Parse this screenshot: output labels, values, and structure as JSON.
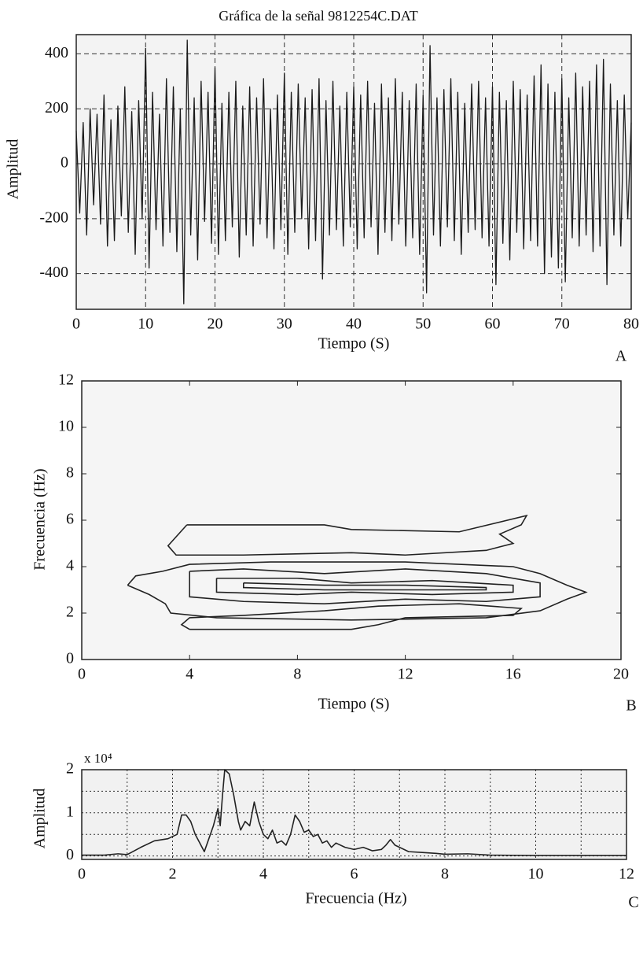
{
  "chart_data": [
    {
      "type": "line",
      "title": "Gráfica de la señal 9812254C.DAT",
      "x_label": "Tiempo (S)",
      "y_label": "Amplitud",
      "panel_label": "A",
      "color": "#1a1a1a",
      "grid": true,
      "xlim": [
        0,
        80
      ],
      "ylim": [
        -530,
        470
      ],
      "xticks": [
        0,
        10,
        20,
        30,
        40,
        50,
        60,
        70,
        80
      ],
      "yticks": [
        -400,
        -200,
        0,
        200,
        400
      ],
      "x": [
        0,
        0.5,
        1,
        1.5,
        2,
        2.5,
        3,
        3.5,
        4,
        4.5,
        5,
        5.5,
        6,
        6.5,
        7,
        7.5,
        8,
        8.5,
        9,
        9.5,
        10,
        10.5,
        11,
        11.5,
        12,
        12.5,
        13,
        13.5,
        14,
        14.5,
        15,
        15.5,
        16,
        16.5,
        17,
        17.5,
        18,
        18.5,
        19,
        19.5,
        20,
        20.5,
        21,
        21.5,
        22,
        22.5,
        23,
        23.5,
        24,
        24.5,
        25,
        25.5,
        26,
        26.5,
        27,
        27.5,
        28,
        28.5,
        29,
        29.5,
        30,
        30.5,
        31,
        31.5,
        32,
        32.5,
        33,
        33.5,
        34,
        34.5,
        35,
        35.5,
        36,
        36.5,
        37,
        37.5,
        38,
        38.5,
        39,
        39.5,
        40,
        40.5,
        41,
        41.5,
        42,
        42.5,
        43,
        43.5,
        44,
        44.5,
        45,
        45.5,
        46,
        46.5,
        47,
        47.5,
        48,
        48.5,
        49,
        49.5,
        50,
        50.5,
        51,
        51.5,
        52,
        52.5,
        53,
        53.5,
        54,
        54.5,
        55,
        55.5,
        56,
        56.5,
        57,
        57.5,
        58,
        58.5,
        59,
        59.5,
        60,
        60.5,
        61,
        61.5,
        62,
        62.5,
        63,
        63.5,
        64,
        64.5,
        65,
        65.5,
        66,
        66.5,
        67,
        67.5,
        68,
        68.5,
        69,
        69.5,
        70,
        70.5,
        71,
        71.5,
        72,
        72.5,
        73,
        73.5,
        74,
        74.5,
        75,
        75.5,
        76,
        76.5,
        77,
        77.5,
        78,
        78.5,
        79,
        79.5,
        80
      ],
      "values": [
        120,
        -180,
        150,
        -260,
        200,
        -150,
        180,
        -220,
        250,
        -300,
        160,
        -280,
        210,
        -190,
        280,
        -250,
        190,
        -330,
        230,
        -200,
        420,
        -380,
        260,
        -240,
        180,
        -300,
        310,
        -250,
        280,
        -320,
        200,
        -510,
        450,
        -260,
        240,
        -350,
        300,
        -210,
        260,
        -290,
        350,
        -330,
        220,
        -280,
        260,
        -230,
        300,
        -340,
        210,
        -260,
        280,
        -300,
        240,
        -220,
        310,
        -270,
        200,
        -310,
        250,
        -240,
        330,
        -330,
        260,
        -250,
        290,
        -200,
        240,
        -310,
        270,
        -280,
        310,
        -420,
        230,
        -260,
        300,
        -240,
        210,
        -300,
        260,
        -230,
        280,
        -310,
        250,
        -270,
        300,
        -230,
        220,
        -330,
        290,
        -250,
        240,
        -280,
        310,
        -220,
        260,
        -300,
        230,
        -270,
        290,
        -330,
        250,
        -470,
        430,
        -260,
        240,
        -300,
        270,
        -230,
        310,
        -280,
        260,
        -330,
        220,
        -250,
        290,
        -240,
        300,
        -270,
        240,
        -300,
        280,
        -440,
        260,
        -290,
        230,
        -350,
        300,
        -250,
        270,
        -310,
        250,
        -280,
        320,
        -300,
        360,
        -400,
        290,
        -340,
        260,
        -380,
        310,
        -430,
        240,
        -270,
        330,
        -300,
        280,
        -260,
        300,
        -320,
        360,
        -300,
        380,
        -440,
        290,
        -260,
        230,
        -300,
        250,
        -200,
        150
      ]
    },
    {
      "type": "contour",
      "x_label": "Tiempo (S)",
      "y_label": "Frecuencia (Hz)",
      "panel_label": "B",
      "color": "#222222",
      "xlim": [
        0,
        20
      ],
      "ylim": [
        0,
        12
      ],
      "xticks": [
        0,
        4,
        8,
        12,
        16,
        20
      ],
      "yticks": [
        0,
        2,
        4,
        6,
        8,
        10,
        12
      ],
      "contours": [
        {
          "x": [
            1.7,
            2,
            3,
            4,
            7,
            12,
            16,
            17,
            18,
            18.7,
            18,
            17,
            15,
            10,
            5,
            3.3,
            3.1,
            2.5,
            1.7
          ],
          "y": [
            3.2,
            3.6,
            3.8,
            4.1,
            4.2,
            4.2,
            4.0,
            3.7,
            3.2,
            2.9,
            2.6,
            2.1,
            1.8,
            1.7,
            1.8,
            2.0,
            2.4,
            2.8,
            3.2
          ]
        },
        {
          "x": [
            3.9,
            9,
            10,
            14,
            16.5,
            16.3,
            15.5,
            16,
            15,
            12,
            10,
            6,
            3.5,
            3.2,
            3.9
          ],
          "y": [
            5.8,
            5.8,
            5.6,
            5.5,
            6.2,
            5.8,
            5.4,
            5.0,
            4.7,
            4.5,
            4.6,
            4.5,
            4.5,
            4.9,
            5.8
          ]
        },
        {
          "x": [
            4,
            10,
            11,
            12,
            16,
            16.3,
            14,
            11,
            9,
            6,
            4,
            3.7,
            4
          ],
          "y": [
            1.3,
            1.3,
            1.5,
            1.8,
            1.9,
            2.2,
            2.4,
            2.3,
            2.1,
            1.9,
            1.8,
            1.5,
            1.3
          ]
        },
        {
          "x": [
            4,
            6,
            9,
            12,
            15,
            17,
            17,
            15,
            12,
            9,
            6,
            4,
            4
          ],
          "y": [
            3.8,
            3.9,
            3.7,
            3.9,
            3.7,
            3.3,
            2.7,
            2.5,
            2.6,
            2.4,
            2.5,
            2.7,
            3.8
          ]
        },
        {
          "x": [
            5,
            8,
            10,
            13,
            16,
            16,
            13,
            10,
            8,
            5,
            5
          ],
          "y": [
            3.5,
            3.5,
            3.3,
            3.4,
            3.2,
            2.9,
            2.8,
            2.9,
            2.8,
            2.9,
            3.5
          ]
        },
        {
          "x": [
            6,
            9,
            12,
            15,
            15,
            12,
            9,
            6,
            6
          ],
          "y": [
            3.3,
            3.2,
            3.2,
            3.1,
            3.0,
            3.0,
            3.0,
            3.1,
            3.3
          ]
        }
      ]
    },
    {
      "type": "line",
      "x_label": "Frecuencia (Hz)",
      "y_label": "Amplitud",
      "y_scale_label": "x 10⁴",
      "panel_label": "C",
      "color": "#222222",
      "grid": true,
      "xlim": [
        0,
        12
      ],
      "ylim": [
        -0.08,
        2
      ],
      "xticks": [
        0,
        2,
        4,
        6,
        8,
        10,
        12
      ],
      "yticks": [
        0,
        1,
        2
      ],
      "minor_xticks": [
        1,
        3,
        5,
        7,
        9,
        11
      ],
      "minor_yticks": [
        0.5,
        1.5
      ],
      "x": [
        0,
        0.5,
        0.8,
        1.0,
        1.3,
        1.6,
        1.9,
        2.1,
        2.2,
        2.3,
        2.4,
        2.5,
        2.6,
        2.7,
        2.8,
        2.9,
        3.0,
        3.05,
        3.1,
        3.15,
        3.25,
        3.35,
        3.45,
        3.5,
        3.6,
        3.7,
        3.8,
        3.9,
        4.0,
        4.1,
        4.2,
        4.3,
        4.4,
        4.5,
        4.6,
        4.7,
        4.8,
        4.9,
        5.0,
        5.1,
        5.2,
        5.3,
        5.4,
        5.5,
        5.6,
        5.8,
        6.0,
        6.2,
        6.4,
        6.6,
        6.7,
        6.8,
        6.9,
        7.0,
        7.2,
        7.5,
        7.8,
        8.0,
        8.5,
        9,
        10,
        11,
        12
      ],
      "values": [
        0.02,
        0.02,
        0.05,
        0.03,
        0.2,
        0.35,
        0.4,
        0.5,
        0.95,
        0.95,
        0.8,
        0.5,
        0.3,
        0.1,
        0.4,
        0.7,
        1.1,
        0.7,
        1.4,
        2.0,
        1.9,
        1.4,
        0.8,
        0.6,
        0.8,
        0.7,
        1.25,
        0.8,
        0.5,
        0.4,
        0.6,
        0.3,
        0.35,
        0.25,
        0.5,
        0.95,
        0.8,
        0.55,
        0.6,
        0.45,
        0.5,
        0.3,
        0.35,
        0.2,
        0.3,
        0.2,
        0.15,
        0.2,
        0.12,
        0.15,
        0.25,
        0.38,
        0.25,
        0.2,
        0.1,
        0.08,
        0.06,
        0.04,
        0.05,
        0.02,
        0.01,
        0.01,
        0.01
      ]
    }
  ]
}
